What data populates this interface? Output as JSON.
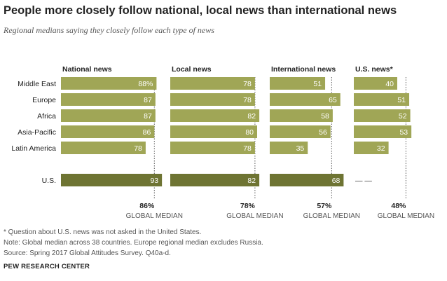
{
  "title": "People more closely follow national, local news than international news",
  "subtitle": "Regional medians saying they closely  follow each type of news",
  "chart_data": {
    "type": "bar",
    "orientation": "horizontal",
    "categories": [
      "Middle East",
      "Europe",
      "Africa",
      "Asia-Pacific",
      "Latin America",
      "U.S."
    ],
    "series": [
      {
        "name": "National news",
        "values": [
          88,
          87,
          87,
          86,
          78,
          93
        ],
        "global_median": 86
      },
      {
        "name": "Local news",
        "values": [
          78,
          78,
          82,
          80,
          78,
          82
        ],
        "global_median": 78
      },
      {
        "name": "International news",
        "values": [
          51,
          65,
          58,
          56,
          35,
          68
        ],
        "global_median": 57
      },
      {
        "name": "U.S. news*",
        "values": [
          40,
          51,
          52,
          53,
          32,
          null
        ],
        "global_median": 48
      }
    ],
    "value_suffix": "%",
    "missing_label": "— —",
    "median_label": "GLOBAL MEDIAN",
    "colors": {
      "bar": "#a0a656",
      "us_bar": "#6e7433",
      "median_line": "#555555"
    },
    "xlim": [
      0,
      100
    ]
  },
  "footer": {
    "note1": "* Question about U.S. news was not asked in the United States.",
    "note2": "Note: Global median across 38 countries. Europe regional median excludes Russia.",
    "source": "Source: Spring 2017 Global Attitudes Survey. Q40a-d.",
    "brand": "PEW RESEARCH CENTER"
  }
}
